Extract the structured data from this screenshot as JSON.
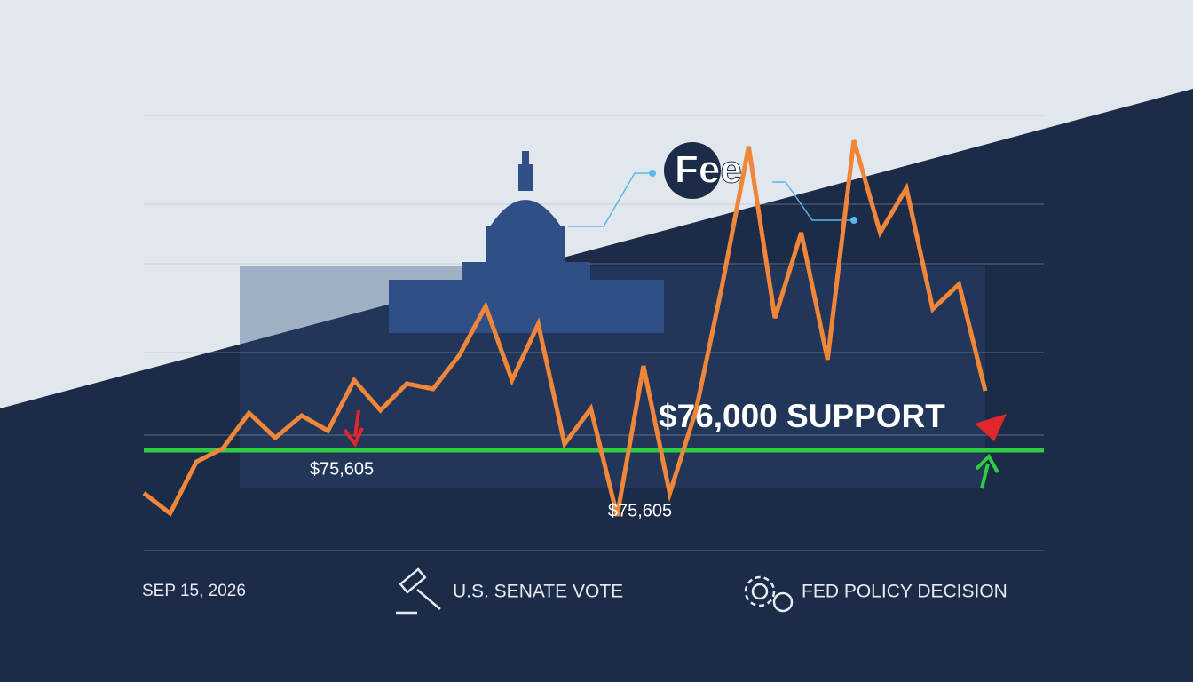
{
  "chart_data": {
    "type": "line",
    "logo": "Fee",
    "series": [
      {
        "color": "#f0863a",
        "values": [
          75733,
          75605,
          75928,
          76011,
          76233,
          76078,
          76217,
          76122,
          76439,
          76250,
          76417,
          76384,
          76595,
          76901,
          76439,
          76790,
          76039,
          76261,
          75590,
          76528,
          75730,
          76250,
          77040,
          77902,
          76828,
          77362,
          76567,
          77940,
          77362,
          77640,
          76884,
          77040,
          76372
        ]
      }
    ],
    "ylim": [
      75372,
      78096
    ],
    "support": {
      "value": 76000,
      "label": "$76,000 SUPPORT",
      "color": "#2ecc40"
    },
    "annotations": [
      {
        "value": 75605,
        "label": "$75,605"
      },
      {
        "value": 75605,
        "label": "$75,605"
      }
    ],
    "footer": {
      "date": "SEP 15, 2026",
      "event_1": "U.S. SENATE VOTE",
      "event_2": "FED POLICY DECISION"
    }
  }
}
